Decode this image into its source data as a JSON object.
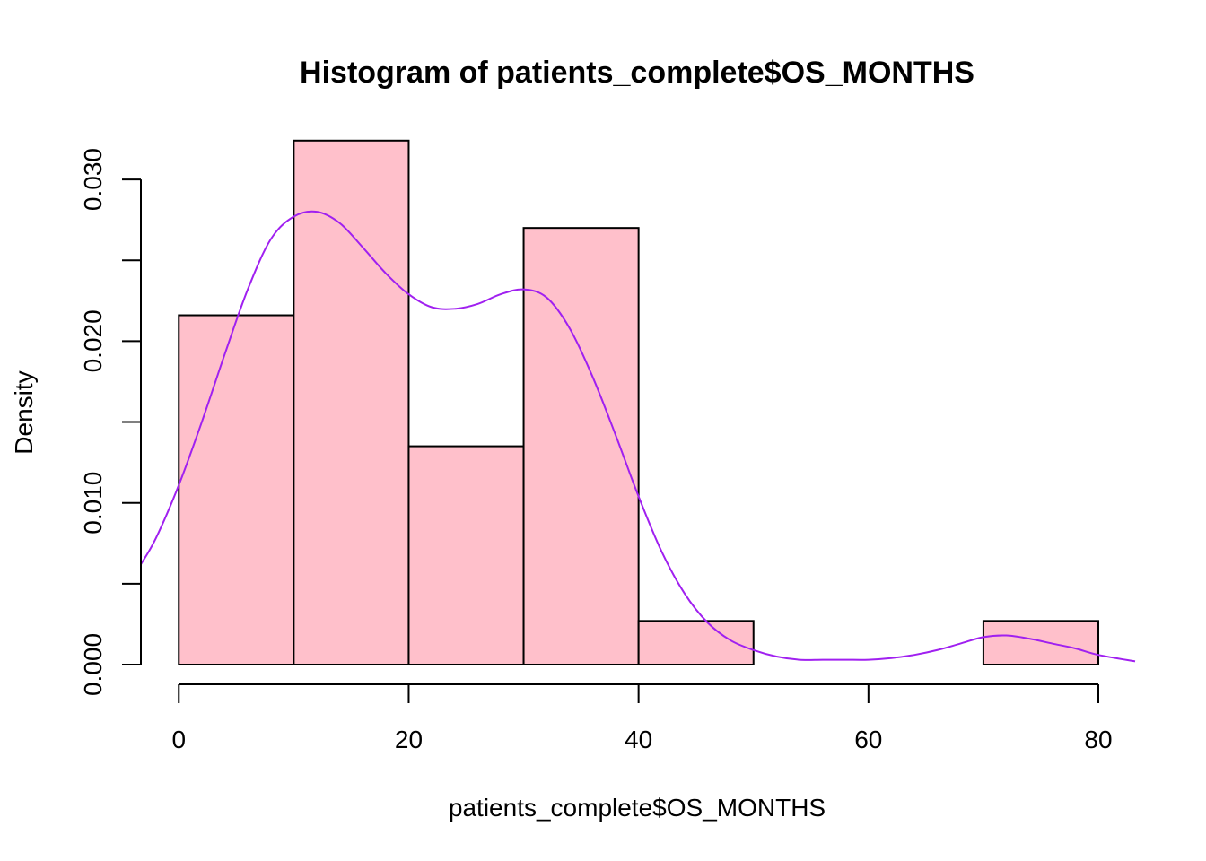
{
  "chart_data": {
    "type": "bar",
    "title": "Histogram of patients_complete$OS_MONTHS",
    "xlabel": "patients_complete$OS_MONTHS",
    "ylabel": "Density",
    "xlim": [
      -3.3,
      83.2
    ],
    "ylim": [
      0,
      0.032
    ],
    "x_ticks": [
      0,
      20,
      40,
      60,
      80
    ],
    "y_ticks": [
      0.0,
      0.005,
      0.01,
      0.015,
      0.02,
      0.025,
      0.03
    ],
    "y_tick_labels": [
      "0.000",
      "",
      "0.010",
      "",
      "0.020",
      "",
      "0.030"
    ],
    "bins": [
      {
        "start": 0,
        "end": 10,
        "density": 0.0216
      },
      {
        "start": 10,
        "end": 20,
        "density": 0.0324
      },
      {
        "start": 20,
        "end": 30,
        "density": 0.0135
      },
      {
        "start": 30,
        "end": 40,
        "density": 0.027
      },
      {
        "start": 40,
        "end": 50,
        "density": 0.0027
      },
      {
        "start": 50,
        "end": 60,
        "density": 0.0
      },
      {
        "start": 60,
        "end": 70,
        "density": 0.0
      },
      {
        "start": 70,
        "end": 80,
        "density": 0.0027
      }
    ],
    "density_curve": {
      "x": [
        -3.3,
        -2,
        0,
        2,
        4,
        6,
        8,
        10,
        12,
        14,
        16,
        18,
        20,
        22,
        24,
        26,
        28,
        30,
        32,
        34,
        36,
        38,
        40,
        42,
        44,
        46,
        48,
        50,
        52,
        54,
        56,
        58,
        60,
        62,
        64,
        66,
        68,
        70,
        72,
        74,
        76,
        78,
        80,
        83.2
      ],
      "y": [
        0.0062,
        0.0078,
        0.0111,
        0.015,
        0.0192,
        0.0232,
        0.0263,
        0.0277,
        0.028,
        0.0273,
        0.0258,
        0.0242,
        0.0229,
        0.0221,
        0.022,
        0.0223,
        0.0229,
        0.0232,
        0.0227,
        0.0208,
        0.0178,
        0.0142,
        0.0104,
        0.007,
        0.0044,
        0.0026,
        0.0015,
        0.0009,
        0.0005,
        0.0003,
        0.0003,
        0.0003,
        0.0003,
        0.0004,
        0.0006,
        0.0009,
        0.0013,
        0.0017,
        0.0018,
        0.0016,
        0.0013,
        0.001,
        0.0006,
        0.0002
      ]
    },
    "colors": {
      "bar_fill": "#FFC0CB",
      "bar_stroke": "#000000",
      "density_line": "#A020F0"
    },
    "grid": false,
    "legend": "none"
  }
}
